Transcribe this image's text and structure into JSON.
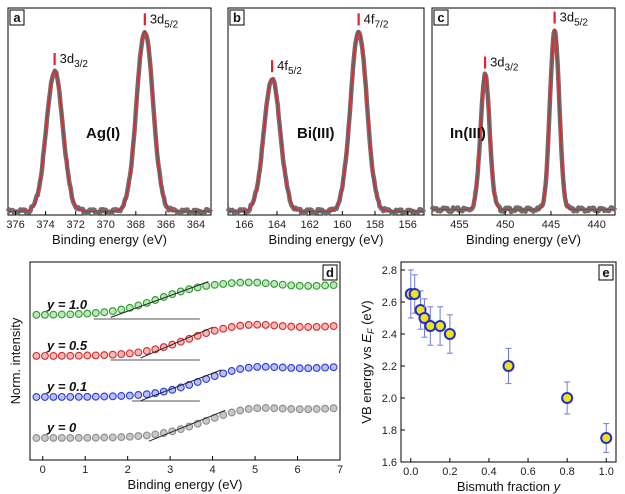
{
  "chart_data": [
    {
      "id": "a",
      "type": "line",
      "panel_label": "a",
      "xlabel": "Binding energy (eV)",
      "x_reversed": true,
      "xlim": [
        376.5,
        363
      ],
      "ylim": [
        0,
        1.15
      ],
      "x_ticks": [
        376,
        374,
        372,
        370,
        368,
        366,
        364
      ],
      "element_label": "Ag(I)",
      "peaks": [
        {
          "label_main": "3d",
          "label_sub": "3/2",
          "position": 373.4,
          "height": 0.78,
          "width": 0.55
        },
        {
          "label_main": "3d",
          "label_sub": "5/2",
          "position": 367.4,
          "height": 1.0,
          "width": 0.55
        }
      ],
      "baseline": 0.02,
      "series": [
        {
          "kind": "measured",
          "color": "#6e6e6e"
        },
        {
          "kind": "fit",
          "color": "#e8202a"
        }
      ]
    },
    {
      "id": "b",
      "type": "line",
      "panel_label": "b",
      "xlabel": "Binding energy (eV)",
      "x_reversed": true,
      "xlim": [
        167,
        155
      ],
      "ylim": [
        0,
        1.15
      ],
      "x_ticks": [
        166,
        164,
        162,
        160,
        158,
        156
      ],
      "element_label": "Bi(III)",
      "peaks": [
        {
          "label_main": "4f",
          "label_sub": "5/2",
          "position": 164.3,
          "height": 0.74,
          "width": 0.5
        },
        {
          "label_main": "4f",
          "label_sub": "7/2",
          "position": 159.0,
          "height": 1.0,
          "width": 0.5
        }
      ],
      "baseline": 0.02,
      "series": [
        {
          "kind": "measured",
          "color": "#6e6e6e"
        },
        {
          "kind": "fit",
          "color": "#e8202a"
        }
      ]
    },
    {
      "id": "c",
      "type": "line",
      "panel_label": "c",
      "xlabel": "Binding energy (eV)",
      "x_reversed": true,
      "xlim": [
        458,
        438
      ],
      "ylim": [
        0,
        1.15
      ],
      "x_ticks": [
        455,
        450,
        445,
        440
      ],
      "element_label": "In(III)",
      "peaks": [
        {
          "label_main": "3d",
          "label_sub": "3/2",
          "position": 452.2,
          "height": 0.75,
          "width": 0.5
        },
        {
          "label_main": "3d",
          "label_sub": "5/2",
          "position": 444.6,
          "height": 1.0,
          "width": 0.5
        }
      ],
      "baseline": 0.03,
      "series": [
        {
          "kind": "measured",
          "color": "#6e6e6e"
        },
        {
          "kind": "fit",
          "color": "#e8202a"
        }
      ]
    },
    {
      "id": "d",
      "type": "scatter",
      "panel_label": "d",
      "xlabel": "Binding energy (eV)",
      "ylabel": "Norm. intensity",
      "xlim": [
        -0.3,
        7
      ],
      "x_ticks": [
        0,
        1,
        2,
        3,
        4,
        5,
        6,
        7
      ],
      "series": [
        {
          "name": "y = 0",
          "label_var": "y",
          "label_value": "= 0",
          "color": "#8c8c8c",
          "fill": "#c8c8c8",
          "offset": 0.0,
          "onset": 2.6,
          "tangent": [
            2.5,
            4.3
          ],
          "baseline_line": null
        },
        {
          "name": "y = 0.1",
          "label_var": "y",
          "label_value": "= 0.1",
          "color": "#2b3bd8",
          "fill": "#b9bff2",
          "offset": 1.0,
          "onset": 2.55,
          "tangent": [
            2.3,
            4.2
          ],
          "baseline_line": [
            2.1,
            3.7
          ]
        },
        {
          "name": "y = 0.5",
          "label_var": "y",
          "label_value": "= 0.5",
          "color": "#d62a2a",
          "fill": "#f2b9b9",
          "offset": 2.0,
          "onset": 2.2,
          "tangent": [
            2.3,
            4.0
          ],
          "baseline_line": [
            1.6,
            3.7
          ]
        },
        {
          "name": "y = 1.0",
          "label_var": "y",
          "label_value": "= 1.0",
          "color": "#2c9b2c",
          "fill": "#bfe6bf",
          "offset": 3.0,
          "onset": 1.55,
          "tangent": [
            1.6,
            3.9
          ],
          "baseline_line": [
            1.2,
            3.7
          ]
        }
      ]
    },
    {
      "id": "e",
      "type": "scatter",
      "panel_label": "e",
      "xlabel_main": "Bismuth fraction",
      "xlabel_var": "y",
      "ylabel_main": "VB energy vs",
      "ylabel_var": "E",
      "ylabel_sub": "F",
      "ylabel_unit": "(eV)",
      "xlim": [
        -0.05,
        1.05
      ],
      "ylim": [
        1.6,
        2.85
      ],
      "x_ticks": [
        0.0,
        0.2,
        0.4,
        0.6,
        0.8,
        1.0
      ],
      "y_ticks": [
        1.6,
        1.8,
        2.0,
        2.2,
        2.4,
        2.6,
        2.8
      ],
      "marker_edge": "#1f2fcc",
      "marker_fill": "#f2e21a",
      "error_color": "#6f7ae0",
      "points": [
        {
          "x": 0.0,
          "y": 2.65,
          "err": 0.15
        },
        {
          "x": 0.02,
          "y": 2.65,
          "err": 0.12
        },
        {
          "x": 0.05,
          "y": 2.55,
          "err": 0.12
        },
        {
          "x": 0.07,
          "y": 2.5,
          "err": 0.12
        },
        {
          "x": 0.1,
          "y": 2.45,
          "err": 0.12
        },
        {
          "x": 0.15,
          "y": 2.45,
          "err": 0.12
        },
        {
          "x": 0.2,
          "y": 2.4,
          "err": 0.12
        },
        {
          "x": 0.5,
          "y": 2.2,
          "err": 0.11
        },
        {
          "x": 0.8,
          "y": 2.0,
          "err": 0.1
        },
        {
          "x": 1.0,
          "y": 1.75,
          "err": 0.09
        }
      ]
    }
  ]
}
